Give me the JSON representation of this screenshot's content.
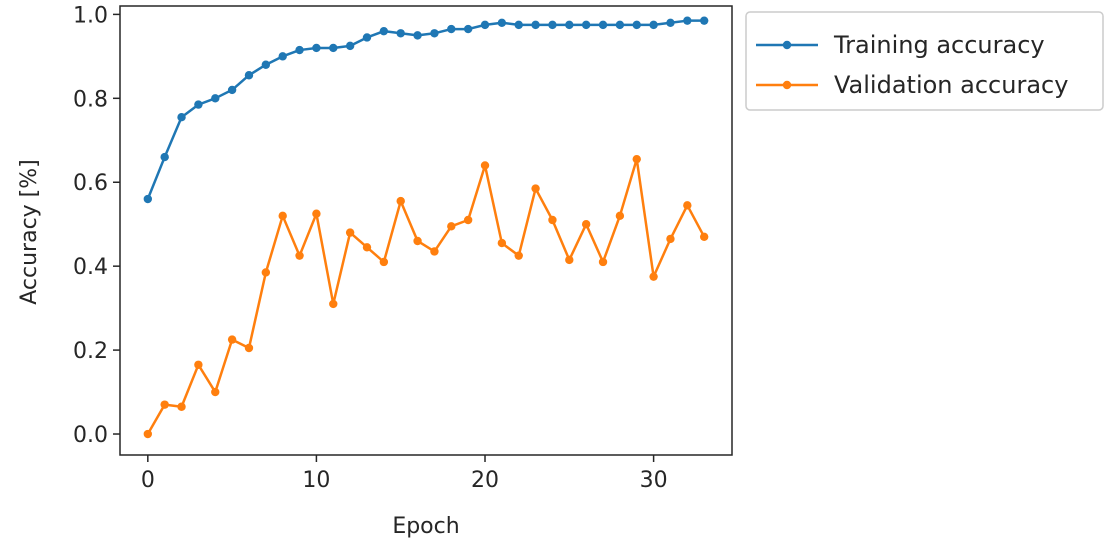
{
  "chart_data": {
    "type": "line",
    "title": "",
    "xlabel": "Epoch",
    "ylabel": "Accuracy [%]",
    "xlim": [
      -1.65,
      34.65
    ],
    "ylim": [
      -0.05,
      1.02
    ],
    "xticks": [
      0,
      10,
      20,
      30
    ],
    "yticks": [
      0.0,
      0.2,
      0.4,
      0.6,
      0.8,
      1.0
    ],
    "ytick_labels": [
      "0.0",
      "0.2",
      "0.4",
      "0.6",
      "0.8",
      "1.0"
    ],
    "grid": false,
    "legend_placement": "outside-upper-right",
    "x": [
      0,
      1,
      2,
      3,
      4,
      5,
      6,
      7,
      8,
      9,
      10,
      11,
      12,
      13,
      14,
      15,
      16,
      17,
      18,
      19,
      20,
      21,
      22,
      23,
      24,
      25,
      26,
      27,
      28,
      29,
      30,
      31,
      32,
      33
    ],
    "series": [
      {
        "name": "Training accuracy",
        "color": "#1f77b4",
        "marker": "dot",
        "values": [
          0.56,
          0.66,
          0.755,
          0.785,
          0.8,
          0.82,
          0.855,
          0.88,
          0.9,
          0.915,
          0.92,
          0.92,
          0.925,
          0.945,
          0.96,
          0.955,
          0.95,
          0.955,
          0.965,
          0.965,
          0.975,
          0.98,
          0.975,
          0.975,
          0.975,
          0.975,
          0.975,
          0.975,
          0.975,
          0.975,
          0.975,
          0.98,
          0.985,
          0.985
        ]
      },
      {
        "name": "Validation accuracy",
        "color": "#ff7f0e",
        "marker": "dot",
        "values": [
          0.0,
          0.07,
          0.065,
          0.165,
          0.1,
          0.225,
          0.205,
          0.385,
          0.52,
          0.425,
          0.525,
          0.31,
          0.48,
          0.445,
          0.41,
          0.555,
          0.46,
          0.435,
          0.495,
          0.51,
          0.64,
          0.455,
          0.425,
          0.585,
          0.51,
          0.415,
          0.5,
          0.41,
          0.52,
          0.655,
          0.375,
          0.465,
          0.545,
          0.47
        ]
      }
    ]
  }
}
